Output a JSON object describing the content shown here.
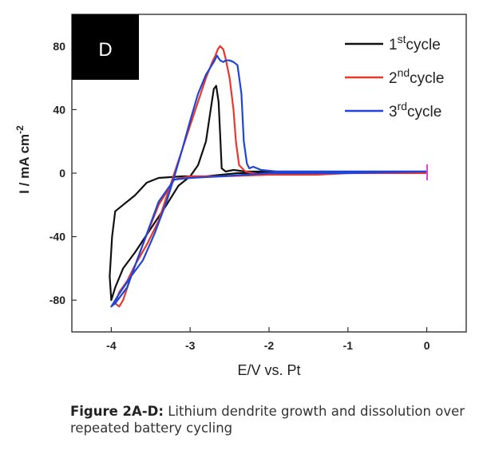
{
  "chart_data": {
    "type": "line",
    "panel_label": "D",
    "xlabel": "E/V vs. Pt",
    "ylabel_main": "I / mA cm",
    "ylabel_exp": "-2",
    "xlim": [
      -4.5,
      0.5
    ],
    "ylim": [
      -100,
      100
    ],
    "x_ticks": [
      -4,
      -3,
      -2,
      -1,
      0
    ],
    "x_tick_labels": [
      "-4",
      "-3",
      "-2",
      "-1",
      "0"
    ],
    "y_ticks": [
      80,
      40,
      0,
      -40,
      -80
    ],
    "y_tick_labels": [
      "80",
      "40",
      "0",
      "-40",
      "-80"
    ],
    "legend_position": "top-right",
    "series": [
      {
        "name": "1st cycle",
        "legend_main": "1",
        "legend_sup": "st",
        "legend_rest": "cycle",
        "color": "#111111",
        "x": [
          0.0,
          -0.5,
          -1.0,
          -1.5,
          -2.0,
          -2.4,
          -2.6,
          -2.8,
          -3.1,
          -3.4,
          -3.55,
          -3.7,
          -3.85,
          -3.95,
          -3.99,
          -4.02,
          -4.0,
          -3.95,
          -3.85,
          -3.7,
          -3.5,
          -3.3,
          -3.15,
          -3.0,
          -2.9,
          -2.8,
          -2.74,
          -2.7,
          -2.67,
          -2.64,
          -2.62,
          -2.6,
          -2.55,
          -2.45,
          -2.3,
          -2.0,
          -1.5,
          -1.0,
          -0.5,
          0.0
        ],
        "y": [
          1,
          1,
          1,
          1,
          0,
          0,
          -1,
          -2,
          -2,
          -3,
          -6,
          -14,
          -20,
          -24,
          -40,
          -65,
          -80,
          -72,
          -60,
          -50,
          -35,
          -20,
          -8,
          -2,
          5,
          20,
          40,
          53,
          55,
          45,
          25,
          3,
          1,
          2,
          1,
          1,
          1,
          1,
          1,
          1
        ]
      },
      {
        "name": "2nd cycle",
        "legend_main": "2",
        "legend_sup": "nd",
        "legend_rest": "cycle",
        "color": "#e8382c",
        "x": [
          0.0,
          -1.0,
          -2.0,
          -2.6,
          -3.0,
          -3.2,
          -3.4,
          -3.6,
          -3.75,
          -3.85,
          -3.9,
          -3.95,
          -3.9,
          -3.8,
          -3.7,
          -3.55,
          -3.4,
          -3.3,
          -3.2,
          -3.1,
          -3.0,
          -2.9,
          -2.8,
          -2.72,
          -2.68,
          -2.65,
          -2.62,
          -2.58,
          -2.55,
          -2.5,
          -2.45,
          -2.42,
          -2.38,
          -2.3,
          -2.1,
          -1.8,
          -1.4,
          -1.0,
          -0.5,
          0.0
        ],
        "y": [
          0,
          0,
          -1,
          -2,
          -2,
          -4,
          -20,
          -45,
          -65,
          -80,
          -84,
          -82,
          -75,
          -68,
          -58,
          -45,
          -30,
          -15,
          0,
          15,
          30,
          45,
          60,
          70,
          74,
          78,
          80,
          78,
          72,
          60,
          40,
          20,
          5,
          1,
          -1,
          -1,
          -1,
          0,
          0,
          1
        ]
      },
      {
        "name": "3rd cycle",
        "legend_main": "3",
        "legend_sup": "rd",
        "legend_rest": "cycle",
        "color": "#2044d8",
        "x": [
          0.0,
          -1.0,
          -2.0,
          -2.6,
          -3.0,
          -3.2,
          -3.4,
          -3.6,
          -3.8,
          -3.95,
          -4.0,
          -3.9,
          -3.75,
          -3.6,
          -3.45,
          -3.3,
          -3.2,
          -3.1,
          -3.0,
          -2.9,
          -2.8,
          -2.7,
          -2.66,
          -2.62,
          -2.58,
          -2.55,
          -2.5,
          -2.45,
          -2.4,
          -2.35,
          -2.32,
          -2.28,
          -2.25,
          -2.2,
          -2.1,
          -1.9,
          -1.5,
          -1.0,
          -0.5,
          0.0
        ],
        "y": [
          1,
          0,
          0,
          -2,
          -3,
          -4,
          -18,
          -45,
          -72,
          -82,
          -84,
          -76,
          -65,
          -55,
          -38,
          -18,
          -2,
          15,
          33,
          50,
          62,
          70,
          74,
          71,
          70,
          71,
          71,
          70,
          68,
          50,
          20,
          6,
          3,
          4,
          2,
          1,
          1,
          1,
          1,
          1
        ]
      }
    ]
  },
  "caption": {
    "bold": "Figure 2A-D:",
    "text": " Lithium dendrite growth and dissolution over repeated battery cycling"
  }
}
